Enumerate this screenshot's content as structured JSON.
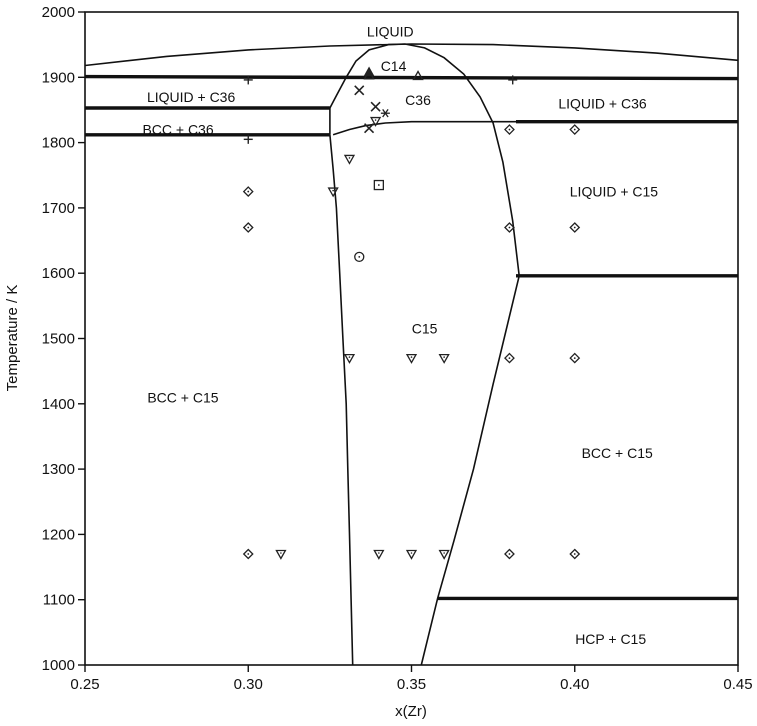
{
  "chart_data": {
    "type": "phase-diagram",
    "xlabel": "x(Zr)",
    "ylabel": "Temperature / K",
    "xlim": [
      0.25,
      0.45
    ],
    "ylim": [
      1000,
      2000
    ],
    "grid": false,
    "x_ticks": [
      {
        "value": 0.25,
        "label": "0.25"
      },
      {
        "value": 0.3,
        "label": "0.30"
      },
      {
        "value": 0.35,
        "label": "0.35"
      },
      {
        "value": 0.4,
        "label": "0.40"
      },
      {
        "value": 0.45,
        "label": "0.45"
      }
    ],
    "y_ticks": [
      {
        "value": 1000,
        "label": "1000"
      },
      {
        "value": 1100,
        "label": "1100"
      },
      {
        "value": 1200,
        "label": "1200"
      },
      {
        "value": 1300,
        "label": "1300"
      },
      {
        "value": 1400,
        "label": "1400"
      },
      {
        "value": 1500,
        "label": "1500"
      },
      {
        "value": 1600,
        "label": "1600"
      },
      {
        "value": 1700,
        "label": "1700"
      },
      {
        "value": 1800,
        "label": "1800"
      },
      {
        "value": 1900,
        "label": "1900"
      },
      {
        "value": 2000,
        "label": "2000"
      }
    ],
    "region_labels": [
      {
        "text": "LIQUID",
        "x": 0.3435,
        "y": 1970
      },
      {
        "text": "C14",
        "x": 0.3445,
        "y": 1917
      },
      {
        "text": "LIQUID + C36",
        "x": 0.2825,
        "y": 1870
      },
      {
        "text": "C36",
        "x": 0.352,
        "y": 1865
      },
      {
        "text": "LIQUID + C36",
        "x": 0.4085,
        "y": 1860
      },
      {
        "text": "BCC + C36",
        "x": 0.2785,
        "y": 1820
      },
      {
        "text": "LIQUID + C15",
        "x": 0.412,
        "y": 1725
      },
      {
        "text": "C15",
        "x": 0.354,
        "y": 1515
      },
      {
        "text": "BCC + C15",
        "x": 0.28,
        "y": 1410
      },
      {
        "text": "BCC + C15",
        "x": 0.413,
        "y": 1325
      },
      {
        "text": "HCP + C15",
        "x": 0.411,
        "y": 1040
      }
    ],
    "boundaries": [
      {
        "name": "liquidus",
        "style": "thin",
        "points": [
          [
            0.25,
            1918
          ],
          [
            0.275,
            1932
          ],
          [
            0.3,
            1942
          ],
          [
            0.325,
            1948
          ],
          [
            0.35,
            1951
          ],
          [
            0.375,
            1950
          ],
          [
            0.4,
            1945
          ],
          [
            0.425,
            1937
          ],
          [
            0.45,
            1926
          ]
        ]
      },
      {
        "name": "isotherm-1900",
        "style": "thick",
        "points": [
          [
            0.25,
            1901
          ],
          [
            0.45,
            1898
          ]
        ]
      },
      {
        "name": "isotherm-1853",
        "style": "thick",
        "points": [
          [
            0.25,
            1853
          ],
          [
            0.325,
            1853
          ]
        ]
      },
      {
        "name": "isotherm-1812-left",
        "style": "thick",
        "points": [
          [
            0.25,
            1812
          ],
          [
            0.325,
            1812
          ]
        ]
      },
      {
        "name": "isotherm-1832-right",
        "style": "thick",
        "points": [
          [
            0.382,
            1832
          ],
          [
            0.45,
            1832
          ]
        ]
      },
      {
        "name": "isotherm-1596",
        "style": "thick",
        "points": [
          [
            0.382,
            1596
          ],
          [
            0.45,
            1596
          ]
        ]
      },
      {
        "name": "isotherm-1102",
        "style": "thick",
        "points": [
          [
            0.358,
            1102
          ],
          [
            0.45,
            1102
          ]
        ]
      },
      {
        "name": "c36-left-edge",
        "style": "thin",
        "points": [
          [
            0.325,
            1853
          ],
          [
            0.325,
            1812
          ]
        ]
      },
      {
        "name": "c15-left-boundary",
        "style": "thin",
        "points": [
          [
            0.325,
            1812
          ],
          [
            0.326,
            1760
          ],
          [
            0.327,
            1700
          ],
          [
            0.328,
            1600
          ],
          [
            0.329,
            1500
          ],
          [
            0.33,
            1400
          ],
          [
            0.3305,
            1300
          ],
          [
            0.331,
            1200
          ],
          [
            0.3315,
            1100
          ],
          [
            0.332,
            1000
          ]
        ]
      },
      {
        "name": "c14-dome-left",
        "style": "thin",
        "points": [
          [
            0.325,
            1853
          ],
          [
            0.327,
            1872
          ],
          [
            0.33,
            1900
          ],
          [
            0.333,
            1925
          ],
          [
            0.337,
            1942
          ],
          [
            0.343,
            1950
          ],
          [
            0.348,
            1951
          ]
        ]
      },
      {
        "name": "c36-lower-boundary",
        "style": "thin",
        "points": [
          [
            0.326,
            1812
          ],
          [
            0.331,
            1820
          ],
          [
            0.336,
            1826
          ],
          [
            0.342,
            1830
          ],
          [
            0.35,
            1832
          ],
          [
            0.382,
            1832
          ]
        ]
      },
      {
        "name": "c15-right-boundary",
        "style": "thin",
        "points": [
          [
            0.348,
            1951
          ],
          [
            0.354,
            1945
          ],
          [
            0.36,
            1930
          ],
          [
            0.366,
            1905
          ],
          [
            0.371,
            1870
          ],
          [
            0.375,
            1830
          ],
          [
            0.378,
            1770
          ],
          [
            0.381,
            1680
          ],
          [
            0.383,
            1596
          ],
          [
            0.375,
            1430
          ],
          [
            0.369,
            1300
          ],
          [
            0.363,
            1190
          ],
          [
            0.358,
            1102
          ],
          [
            0.353,
            1000
          ]
        ]
      }
    ],
    "experimental_points": [
      {
        "marker": "diamond",
        "points": [
          [
            0.3,
            1725
          ],
          [
            0.3,
            1670
          ],
          [
            0.3,
            1170
          ],
          [
            0.38,
            1820
          ],
          [
            0.4,
            1820
          ],
          [
            0.38,
            1670
          ],
          [
            0.4,
            1670
          ],
          [
            0.38,
            1470
          ],
          [
            0.4,
            1470
          ],
          [
            0.38,
            1170
          ],
          [
            0.4,
            1170
          ]
        ]
      },
      {
        "marker": "triangle-down",
        "points": [
          [
            0.326,
            1725
          ],
          [
            0.331,
            1775
          ],
          [
            0.339,
            1833
          ],
          [
            0.331,
            1470
          ],
          [
            0.35,
            1470
          ],
          [
            0.36,
            1470
          ],
          [
            0.31,
            1170
          ],
          [
            0.34,
            1170
          ],
          [
            0.35,
            1170
          ],
          [
            0.36,
            1170
          ]
        ]
      },
      {
        "marker": "plus",
        "points": [
          [
            0.3,
            1896
          ],
          [
            0.3,
            1805
          ],
          [
            0.381,
            1896
          ]
        ]
      },
      {
        "marker": "cross",
        "points": [
          [
            0.334,
            1880
          ],
          [
            0.339,
            1855
          ],
          [
            0.337,
            1822
          ]
        ]
      },
      {
        "marker": "asterisk",
        "points": [
          [
            0.342,
            1845
          ]
        ]
      },
      {
        "marker": "triangle-up",
        "points": [
          [
            0.337,
            1903
          ],
          [
            0.352,
            1902
          ]
        ]
      },
      {
        "marker": "filled-triangle-up",
        "points": [
          [
            0.337,
            1908
          ]
        ]
      },
      {
        "marker": "square",
        "points": [
          [
            0.34,
            1735
          ]
        ]
      },
      {
        "marker": "circle",
        "points": [
          [
            0.334,
            1625
          ]
        ]
      }
    ]
  }
}
